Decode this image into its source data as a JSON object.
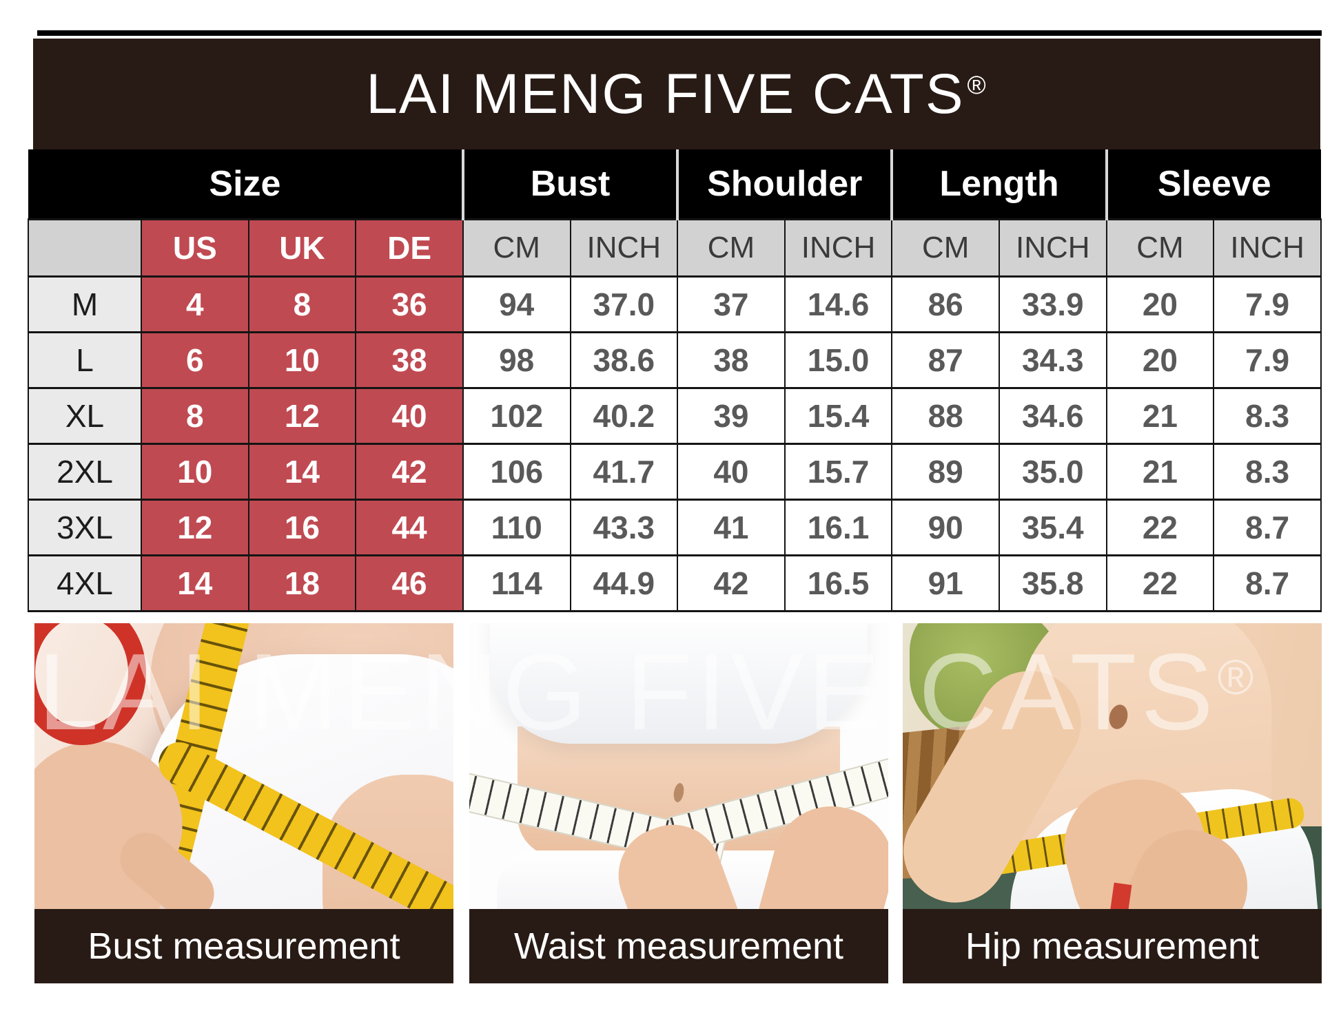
{
  "brand": {
    "title": "LAI MENG FIVE CATS",
    "registered_mark": "®"
  },
  "size_table": {
    "groups": [
      {
        "label": "Size"
      },
      {
        "label": "Bust"
      },
      {
        "label": "Shoulder"
      },
      {
        "label": "Length"
      },
      {
        "label": "Sleeve"
      }
    ],
    "subheaders": [
      "",
      "US",
      "UK",
      "DE",
      "CM",
      "INCH",
      "CM",
      "INCH",
      "CM",
      "INCH",
      "CM",
      "INCH"
    ],
    "rows": [
      {
        "size": "M",
        "us": "4",
        "uk": "8",
        "de": "36",
        "values": [
          "94",
          "37.0",
          "37",
          "14.6",
          "86",
          "33.9",
          "20",
          "7.9"
        ]
      },
      {
        "size": "L",
        "us": "6",
        "uk": "10",
        "de": "38",
        "values": [
          "98",
          "38.6",
          "38",
          "15.0",
          "87",
          "34.3",
          "20",
          "7.9"
        ]
      },
      {
        "size": "XL",
        "us": "8",
        "uk": "12",
        "de": "40",
        "values": [
          "102",
          "40.2",
          "39",
          "15.4",
          "88",
          "34.6",
          "21",
          "8.3"
        ]
      },
      {
        "size": "2XL",
        "us": "10",
        "uk": "14",
        "de": "42",
        "values": [
          "106",
          "41.7",
          "40",
          "15.7",
          "89",
          "35.0",
          "21",
          "8.3"
        ]
      },
      {
        "size": "3XL",
        "us": "12",
        "uk": "16",
        "de": "44",
        "values": [
          "110",
          "43.3",
          "41",
          "16.1",
          "90",
          "35.4",
          "22",
          "8.7"
        ]
      },
      {
        "size": "4XL",
        "us": "14",
        "uk": "18",
        "de": "46",
        "values": [
          "114",
          "44.9",
          "42",
          "16.5",
          "91",
          "35.8",
          "22",
          "8.7"
        ]
      }
    ]
  },
  "photos": [
    {
      "caption": "Bust measurement"
    },
    {
      "caption": "Waist measurement"
    },
    {
      "caption": "Hip measurement"
    }
  ],
  "watermark": {
    "text": "LAI MENG FIVE CATS",
    "registered_mark": "®"
  },
  "colors": {
    "header_bg": "#281b15",
    "table_header_bg": "#000000",
    "size_accent_red": "#c04a52",
    "subheader_gray": "#d2d2d2",
    "row_label_gray": "#eaeaea",
    "value_text": "#595959"
  }
}
